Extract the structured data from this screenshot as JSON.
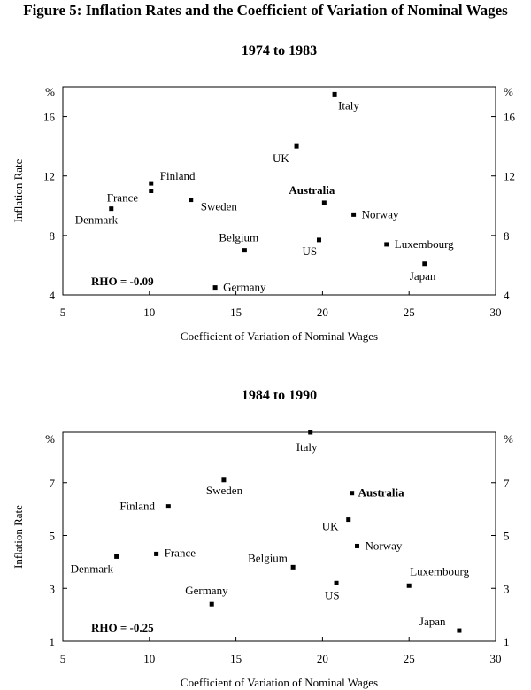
{
  "figure_title": "Figure 5: Inflation Rates and the Coefficient of Variation of Nominal Wages",
  "chart_data": [
    {
      "type": "scatter",
      "title": "1974 to 1983",
      "xlabel": "Coefficient of Variation of Nominal Wages",
      "ylabel": "Inflation Rate",
      "y_unit": "%",
      "xlim": [
        5,
        30
      ],
      "ylim": [
        4,
        18
      ],
      "xticks": [
        5,
        10,
        15,
        20,
        25,
        30
      ],
      "yticks": [
        4,
        8,
        12,
        16
      ],
      "annotation": "RHO = -0.09",
      "points": [
        {
          "label": "Italy",
          "x": 20.7,
          "y": 17.5,
          "bold": false
        },
        {
          "label": "UK",
          "x": 18.5,
          "y": 14.0,
          "bold": false
        },
        {
          "label": "Finland",
          "x": 10.1,
          "y": 11.5,
          "bold": false
        },
        {
          "label": "France",
          "x": 10.1,
          "y": 11.0,
          "bold": false
        },
        {
          "label": "Sweden",
          "x": 12.4,
          "y": 10.4,
          "bold": false
        },
        {
          "label": "Australia",
          "x": 20.1,
          "y": 10.2,
          "bold": true
        },
        {
          "label": "Denmark",
          "x": 7.8,
          "y": 9.8,
          "bold": false
        },
        {
          "label": "Norway",
          "x": 21.8,
          "y": 9.4,
          "bold": false
        },
        {
          "label": "US",
          "x": 19.8,
          "y": 7.7,
          "bold": false
        },
        {
          "label": "Luxembourg",
          "x": 23.7,
          "y": 7.4,
          "bold": false
        },
        {
          "label": "Belgium",
          "x": 15.5,
          "y": 7.0,
          "bold": false
        },
        {
          "label": "Japan",
          "x": 25.9,
          "y": 6.1,
          "bold": false
        },
        {
          "label": "Germany",
          "x": 13.8,
          "y": 4.5,
          "bold": false
        }
      ]
    },
    {
      "type": "scatter",
      "title": "1984 to 1990",
      "xlabel": "Coefficient of Variation of Nominal Wages",
      "ylabel": "Inflation Rate",
      "y_unit": "%",
      "xlim": [
        5,
        30
      ],
      "ylim": [
        1,
        8.9
      ],
      "xticks": [
        5,
        10,
        15,
        20,
        25,
        30
      ],
      "yticks": [
        1,
        3,
        5,
        7
      ],
      "annotation": "RHO = -0.25",
      "points": [
        {
          "label": "Italy",
          "x": 19.3,
          "y": 8.9,
          "bold": false
        },
        {
          "label": "Sweden",
          "x": 14.3,
          "y": 7.1,
          "bold": false
        },
        {
          "label": "Australia",
          "x": 21.7,
          "y": 6.6,
          "bold": true
        },
        {
          "label": "Finland",
          "x": 11.1,
          "y": 6.1,
          "bold": false
        },
        {
          "label": "UK",
          "x": 21.5,
          "y": 5.6,
          "bold": false
        },
        {
          "label": "Norway",
          "x": 22.0,
          "y": 4.6,
          "bold": false
        },
        {
          "label": "France",
          "x": 10.4,
          "y": 4.3,
          "bold": false
        },
        {
          "label": "Denmark",
          "x": 8.1,
          "y": 4.2,
          "bold": false
        },
        {
          "label": "Belgium",
          "x": 18.3,
          "y": 3.8,
          "bold": false
        },
        {
          "label": "US",
          "x": 20.8,
          "y": 3.2,
          "bold": false
        },
        {
          "label": "Luxembourg",
          "x": 25.0,
          "y": 3.1,
          "bold": false
        },
        {
          "label": "Germany",
          "x": 13.6,
          "y": 2.4,
          "bold": false
        },
        {
          "label": "Japan",
          "x": 27.9,
          "y": 1.4,
          "bold": false
        }
      ]
    }
  ]
}
